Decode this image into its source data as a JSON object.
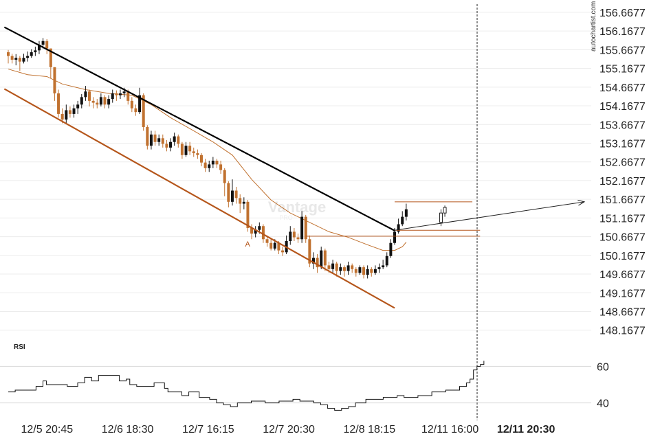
{
  "watermark": "autochartist.com",
  "broker_watermark": {
    "name": "Vantage",
    "sub": "PRO"
  },
  "chart_data": {
    "type": "candlestick",
    "price_axis": {
      "range": [
        147.85,
        156.85
      ],
      "ticks": [
        156.6677,
        156.1677,
        155.6677,
        155.1677,
        154.6677,
        154.1677,
        153.6677,
        153.1677,
        152.6677,
        152.1677,
        151.6677,
        151.1677,
        150.6677,
        150.1677,
        149.6677,
        149.1677,
        148.6677,
        148.1677
      ],
      "tick_labels": [
        "156.6677",
        "156.1677",
        "155.6677",
        "155.1677",
        "154.6677",
        "154.1677",
        "153.6677",
        "153.1677",
        "152.6677",
        "152.1677",
        "151.6677",
        "151.1677",
        "150.6677",
        "150.1677",
        "149.6677",
        "149.1677",
        "148.6677",
        "148.1677"
      ]
    },
    "time_axis": {
      "bar_count": 114,
      "labels": [
        {
          "text": "12/5 20:45",
          "bar": 9,
          "bold": false
        },
        {
          "text": "12/6 18:30",
          "bar": 26.5,
          "bold": false
        },
        {
          "text": "12/7 16:15",
          "bar": 44,
          "bold": false
        },
        {
          "text": "12/7 20:30",
          "bar": 61.5,
          "bold": false
        },
        {
          "text": "12/8 18:15",
          "bar": 79,
          "bold": false
        },
        {
          "text": "12/11 16:00",
          "bar": 96.5,
          "bold": false
        },
        {
          "text": "12/11 20:30",
          "bar": 113,
          "bold": true
        }
      ],
      "signal_bar": 113
    },
    "candles": [
      [
        0,
        155.6,
        155.5,
        155.66,
        155.3
      ],
      [
        1,
        155.5,
        155.4,
        155.56,
        155.3
      ],
      [
        2,
        155.4,
        155.45,
        155.55,
        155.25
      ],
      [
        3,
        155.45,
        155.35,
        155.5,
        155.1
      ],
      [
        4,
        155.35,
        155.45,
        155.56,
        155.3
      ],
      [
        5,
        155.45,
        155.5,
        155.62,
        155.35
      ],
      [
        6,
        155.5,
        155.6,
        155.68,
        155.45
      ],
      [
        7,
        155.6,
        155.65,
        155.75,
        155.5
      ],
      [
        8,
        155.65,
        155.8,
        155.9,
        155.55
      ],
      [
        9,
        155.8,
        155.9,
        155.98,
        155.7
      ],
      [
        10,
        155.9,
        155.7,
        155.95,
        155.55
      ],
      [
        11,
        155.7,
        155.2,
        155.7,
        154.9
      ],
      [
        12,
        155.2,
        154.5,
        155.2,
        154.3
      ],
      [
        13,
        154.5,
        153.95,
        154.6,
        153.85
      ],
      [
        14,
        153.95,
        153.8,
        154.1,
        153.7
      ],
      [
        15,
        153.8,
        154.05,
        154.2,
        153.7
      ],
      [
        16,
        154.05,
        153.95,
        154.15,
        153.85
      ],
      [
        17,
        153.95,
        154.1,
        154.2,
        153.85
      ],
      [
        18,
        154.1,
        154.2,
        154.3,
        153.95
      ],
      [
        19,
        154.2,
        154.4,
        154.48,
        154.1
      ],
      [
        20,
        154.4,
        154.55,
        154.7,
        154.3
      ],
      [
        21,
        154.55,
        154.3,
        154.6,
        154.15
      ],
      [
        22,
        154.3,
        154.25,
        154.4,
        154.1
      ],
      [
        23,
        154.25,
        154.2,
        154.35,
        154.1
      ],
      [
        24,
        154.2,
        154.4,
        154.5,
        154.15
      ],
      [
        25,
        154.4,
        154.2,
        154.45,
        154.1
      ],
      [
        26,
        154.2,
        154.35,
        154.45,
        154.1
      ],
      [
        27,
        154.35,
        154.5,
        154.6,
        154.25
      ],
      [
        28,
        154.5,
        154.45,
        154.58,
        154.3
      ],
      [
        29,
        154.45,
        154.5,
        154.6,
        154.35
      ],
      [
        30,
        154.5,
        154.55,
        154.65,
        154.4
      ],
      [
        31,
        154.55,
        154.3,
        154.6,
        154.2
      ],
      [
        32,
        154.3,
        154.1,
        154.4,
        154.0
      ],
      [
        33,
        154.1,
        154.0,
        154.2,
        153.9
      ],
      [
        34,
        154.0,
        154.45,
        154.65,
        153.95
      ],
      [
        35,
        154.45,
        153.6,
        154.5,
        153.5
      ],
      [
        36,
        153.6,
        153.1,
        153.65,
        153.0
      ],
      [
        37,
        153.1,
        153.4,
        153.5,
        153.0
      ],
      [
        38,
        153.4,
        153.2,
        153.5,
        153.1
      ],
      [
        39,
        153.2,
        153.3,
        153.4,
        153.1
      ],
      [
        40,
        153.3,
        153.15,
        153.4,
        153.05
      ],
      [
        41,
        153.15,
        153.05,
        153.25,
        152.95
      ],
      [
        42,
        153.05,
        153.2,
        153.3,
        152.95
      ],
      [
        43,
        153.2,
        153.35,
        153.45,
        153.1
      ],
      [
        44,
        153.35,
        153.15,
        153.4,
        153.05
      ],
      [
        45,
        153.15,
        152.85,
        153.2,
        152.75
      ],
      [
        46,
        152.85,
        153.1,
        153.2,
        152.8
      ],
      [
        47,
        153.1,
        152.95,
        153.2,
        152.85
      ],
      [
        48,
        152.95,
        152.9,
        153.05,
        152.8
      ],
      [
        49,
        152.9,
        152.85,
        153.0,
        152.75
      ],
      [
        50,
        152.85,
        152.65,
        152.9,
        152.55
      ],
      [
        51,
        152.65,
        152.5,
        152.75,
        152.4
      ],
      [
        52,
        152.5,
        152.6,
        152.7,
        152.4
      ],
      [
        53,
        152.6,
        152.7,
        152.8,
        152.5
      ],
      [
        54,
        152.7,
        152.6,
        152.75,
        152.5
      ],
      [
        55,
        152.6,
        152.45,
        152.7,
        152.35
      ],
      [
        56,
        152.45,
        152.1,
        152.5,
        151.75
      ],
      [
        57,
        152.1,
        151.6,
        152.15,
        151.45
      ],
      [
        58,
        151.6,
        151.9,
        152.2,
        151.5
      ],
      [
        59,
        151.9,
        151.7,
        152.0,
        151.55
      ],
      [
        60,
        151.7,
        151.55,
        151.8,
        151.3
      ],
      [
        61,
        151.55,
        151.6,
        151.72,
        151.4
      ],
      [
        62,
        151.6,
        150.9,
        151.65,
        150.8
      ],
      [
        63,
        150.9,
        150.75,
        151.0,
        150.6
      ],
      [
        64,
        150.75,
        150.85,
        150.95,
        150.65
      ],
      [
        65,
        150.85,
        150.95,
        151.05,
        150.75
      ],
      [
        66,
        150.95,
        150.6,
        151.0,
        150.5
      ],
      [
        67,
        150.6,
        150.5,
        150.7,
        150.4
      ],
      [
        68,
        150.5,
        150.35,
        150.6,
        150.3
      ],
      [
        69,
        150.35,
        150.5,
        150.6,
        150.3
      ],
      [
        70,
        150.5,
        150.3,
        150.55,
        150.2
      ],
      [
        71,
        150.3,
        150.25,
        150.4,
        150.15
      ],
      [
        72,
        150.25,
        150.55,
        150.7,
        150.2
      ],
      [
        73,
        150.55,
        150.8,
        150.95,
        150.45
      ],
      [
        74,
        150.8,
        150.65,
        150.9,
        150.55
      ],
      [
        75,
        150.65,
        150.6,
        150.75,
        150.5
      ],
      [
        76,
        150.6,
        151.2,
        151.35,
        150.5
      ],
      [
        77,
        151.2,
        150.6,
        151.25,
        150.5
      ],
      [
        78,
        150.6,
        149.95,
        150.7,
        149.85
      ],
      [
        79,
        149.95,
        150.1,
        150.25,
        149.8
      ],
      [
        80,
        150.1,
        149.85,
        150.2,
        149.7
      ],
      [
        81,
        149.85,
        150.3,
        150.4,
        149.8
      ],
      [
        82,
        150.3,
        149.9,
        150.35,
        149.75
      ],
      [
        83,
        149.9,
        149.8,
        150.0,
        149.7
      ],
      [
        84,
        149.8,
        149.95,
        150.05,
        149.7
      ],
      [
        85,
        149.95,
        149.75,
        150.0,
        149.6
      ],
      [
        86,
        149.75,
        149.85,
        149.95,
        149.65
      ],
      [
        87,
        149.85,
        149.75,
        149.9,
        149.6
      ],
      [
        88,
        149.75,
        149.9,
        150.0,
        149.65
      ],
      [
        89,
        149.9,
        149.8,
        149.95,
        149.7
      ],
      [
        90,
        149.8,
        149.7,
        149.85,
        149.6
      ],
      [
        91,
        149.7,
        149.85,
        149.9,
        149.65
      ],
      [
        92,
        149.85,
        149.65,
        149.9,
        149.55
      ],
      [
        93,
        149.65,
        149.8,
        149.9,
        149.55
      ],
      [
        94,
        149.8,
        149.7,
        149.85,
        149.6
      ],
      [
        95,
        149.7,
        149.8,
        149.9,
        149.65
      ],
      [
        96,
        149.8,
        149.85,
        149.95,
        149.7
      ],
      [
        97,
        149.85,
        149.9,
        150.05,
        149.8
      ],
      [
        98,
        149.9,
        150.15,
        150.25,
        149.85
      ],
      [
        99,
        150.15,
        150.5,
        150.6,
        150.1
      ],
      [
        100,
        150.5,
        150.8,
        150.9,
        150.45
      ],
      [
        101,
        150.8,
        151.0,
        151.15,
        150.75
      ],
      [
        102,
        151.0,
        151.2,
        151.35,
        150.95
      ],
      [
        103,
        151.2,
        151.4,
        151.55,
        151.1
      ]
    ],
    "moving_average": [
      [
        0,
        155.15
      ],
      [
        5,
        155.0
      ],
      [
        10,
        154.95
      ],
      [
        14,
        154.75
      ],
      [
        20,
        154.6
      ],
      [
        26,
        154.5
      ],
      [
        32,
        154.45
      ],
      [
        37,
        154.2
      ],
      [
        42,
        153.85
      ],
      [
        48,
        153.5
      ],
      [
        53,
        153.2
      ],
      [
        58,
        152.85
      ],
      [
        63,
        152.2
      ],
      [
        68,
        151.65
      ],
      [
        73,
        151.3
      ],
      [
        78,
        151.05
      ],
      [
        83,
        150.8
      ],
      [
        88,
        150.65
      ],
      [
        93,
        150.45
      ],
      [
        97,
        150.3
      ],
      [
        100,
        150.3
      ],
      [
        102,
        150.4
      ],
      [
        103,
        150.52
      ]
    ],
    "trendlines": [
      {
        "role": "resistance",
        "color": "#000000",
        "from": [
          -1,
          156.27
        ],
        "to": [
          100,
          150.83
        ]
      },
      {
        "role": "support",
        "color": "#b5561b",
        "from": [
          -1,
          154.62
        ],
        "to": [
          100,
          148.76
        ]
      }
    ],
    "levels": [
      {
        "price": 151.6,
        "from_bar": 100,
        "to_bar": 113,
        "color": "#b5561b"
      },
      {
        "price": 150.84,
        "from_bar": 100,
        "to_bar": 115,
        "color": "#b5561b"
      },
      {
        "price": 150.68,
        "from_bar": 77,
        "to_bar": 115,
        "color": "#b5561b"
      }
    ],
    "forecast_arrow": {
      "from": [
        100,
        150.84
      ],
      "to": [
        113,
        151.6
      ]
    },
    "annotation": {
      "text": "A",
      "bar": 62,
      "price": 150.48
    },
    "rsi": {
      "label": "RSI",
      "range": [
        35,
        65
      ],
      "ticks": [
        60,
        40
      ],
      "tick_labels": [
        "60",
        "40"
      ],
      "values": [
        [
          0,
          46
        ],
        [
          2,
          47
        ],
        [
          6,
          47
        ],
        [
          8,
          49
        ],
        [
          10,
          52
        ],
        [
          11,
          50
        ],
        [
          14,
          50
        ],
        [
          17,
          49
        ],
        [
          20,
          51
        ],
        [
          22,
          54
        ],
        [
          24,
          52
        ],
        [
          26,
          55
        ],
        [
          30,
          55
        ],
        [
          32,
          52
        ],
        [
          34,
          53
        ],
        [
          35,
          50
        ],
        [
          37,
          49
        ],
        [
          40,
          49
        ],
        [
          42,
          51
        ],
        [
          43,
          51
        ],
        [
          45,
          48
        ],
        [
          46,
          46
        ],
        [
          48,
          46
        ],
        [
          50,
          44
        ],
        [
          52,
          46
        ],
        [
          55,
          43
        ],
        [
          58,
          42
        ],
        [
          60,
          40
        ],
        [
          62,
          39
        ],
        [
          64,
          38
        ],
        [
          66,
          40
        ],
        [
          68,
          40
        ],
        [
          70,
          41
        ],
        [
          72,
          41
        ],
        [
          74,
          40
        ],
        [
          76,
          40
        ],
        [
          78,
          41
        ],
        [
          80,
          41
        ],
        [
          82,
          42
        ],
        [
          84,
          41
        ],
        [
          86,
          41
        ],
        [
          88,
          40
        ],
        [
          90,
          39
        ],
        [
          92,
          37
        ],
        [
          94,
          36
        ],
        [
          96,
          37
        ],
        [
          98,
          38
        ],
        [
          100,
          40
        ],
        [
          103,
          42
        ],
        [
          106,
          42
        ],
        [
          108,
          43
        ],
        [
          110,
          43
        ],
        [
          112,
          44
        ],
        [
          114,
          43
        ],
        [
          116,
          43
        ],
        [
          118,
          44
        ],
        [
          120,
          44
        ],
        [
          122,
          46
        ],
        [
          124,
          46
        ],
        [
          126,
          47
        ],
        [
          128,
          47
        ],
        [
          130,
          49
        ],
        [
          132,
          51
        ],
        [
          133,
          53
        ],
        [
          134,
          58
        ],
        [
          135,
          60
        ],
        [
          136,
          61
        ],
        [
          137,
          63
        ]
      ],
      "value_scale_bars": 114
    }
  }
}
